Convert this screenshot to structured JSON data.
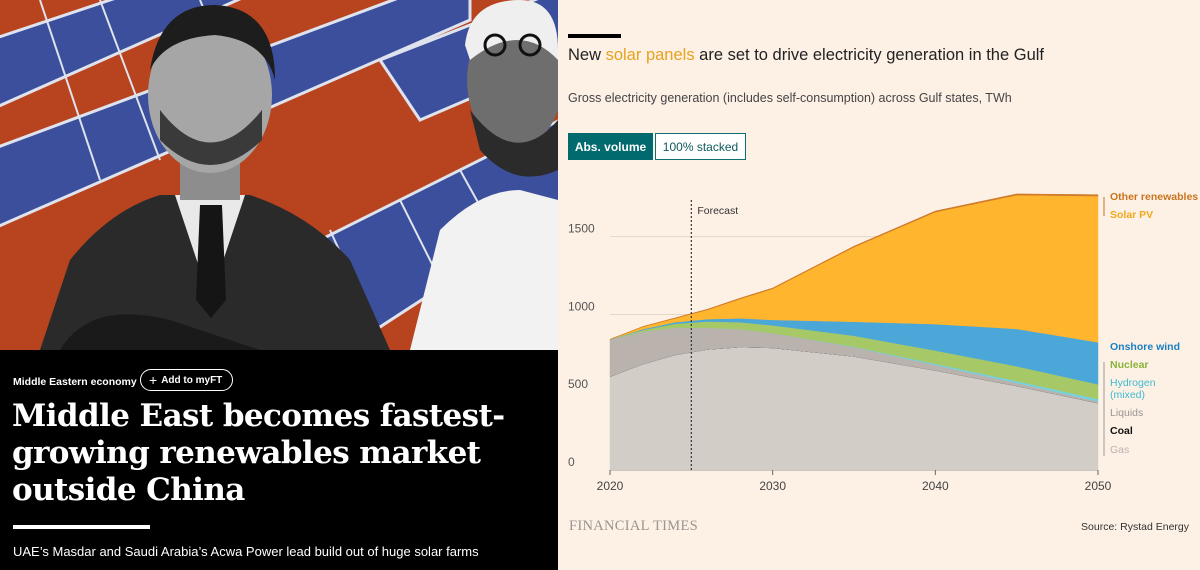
{
  "article": {
    "section": "Middle Eastern economy",
    "myft_label": "Add to myFT",
    "headline": "Middle East becomes fastest-growing renewables market outside China",
    "standfirst": "UAE’s Masdar and Saudi Arabia’s Acwa Power lead build out of huge solar farms"
  },
  "chart": {
    "title_before": "New ",
    "title_highlight": "solar panels",
    "title_after": " are set to drive electricity generation in the Gulf",
    "subtitle": "Gross electricity generation (includes self-consumption) across Gulf states, TWh",
    "toggle_active": "Abs. volume",
    "toggle_inactive": "100% stacked",
    "forecast_label": "Forecast",
    "logo": "FINANCIAL TIMES",
    "source": "Source: Rystad Energy"
  },
  "chart_data": {
    "type": "area",
    "stacked": true,
    "x": [
      2020,
      2022,
      2024,
      2026,
      2028,
      2030,
      2035,
      2040,
      2045,
      2050
    ],
    "xticks": [
      2020,
      2030,
      2040,
      2050
    ],
    "yticks": [
      0,
      500,
      1000,
      1500
    ],
    "ylim": [
      0,
      1800
    ],
    "forecast_start": 2025,
    "series": [
      {
        "name": "Gas",
        "color": "#d3cdc8",
        "values": [
          600,
          680,
          740,
          775,
          790,
          785,
          730,
          640,
          540,
          430
        ]
      },
      {
        "name": "Coal",
        "color": "#1a1a1a",
        "values": [
          0,
          0,
          0,
          0,
          0,
          0,
          0,
          0,
          0,
          0
        ]
      },
      {
        "name": "Liquids",
        "color": "#b9b2ad",
        "values": [
          240,
          210,
          175,
          140,
          115,
          95,
          60,
          35,
          20,
          10
        ]
      },
      {
        "name": "Hydrogen (mixed)",
        "color": "#76d1e0",
        "values": [
          0,
          0,
          0,
          0,
          0,
          0,
          3,
          8,
          12,
          16
        ]
      },
      {
        "name": "Nuclear",
        "color": "#a6c866",
        "values": [
          0,
          10,
          25,
          40,
          45,
          50,
          70,
          85,
          95,
          95
        ]
      },
      {
        "name": "Onshore wind",
        "color": "#4aa7d8",
        "values": [
          0,
          5,
          10,
          15,
          25,
          35,
          90,
          170,
          240,
          270
        ]
      },
      {
        "name": "Solar PV",
        "color": "#ffb52e",
        "values": [
          0,
          15,
          25,
          60,
          125,
          200,
          480,
          720,
          860,
          940
        ]
      },
      {
        "name": "Other renewables",
        "color": "#d07b2a",
        "values": [
          0,
          2,
          3,
          4,
          5,
          5,
          6,
          7,
          8,
          9
        ]
      }
    ],
    "legend_colors": {
      "Other renewables": "#c8741e",
      "Solar PV": "#f0a81c",
      "Onshore wind": "#1b7fc0",
      "Nuclear": "#8ab33a",
      "Hydrogen (mixed)": "#3fbad0",
      "Liquids": "#9b9591",
      "Coal": "#111111",
      "Gas": "#b8b2ae"
    },
    "legend_labels": [
      "Other renewables",
      "Solar PV",
      "Onshore wind",
      "Nuclear",
      "Hydrogen (mixed)",
      "Liquids",
      "Coal",
      "Gas"
    ],
    "colors": {
      "highlight": "#e6a21d",
      "toggle_active": "#006a6e",
      "background": "#fdf1e6"
    }
  }
}
